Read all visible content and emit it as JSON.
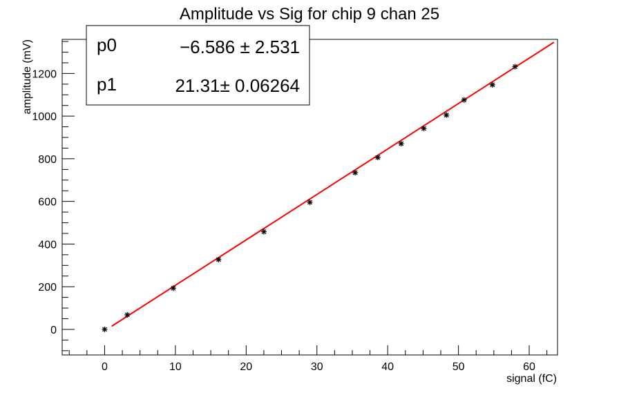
{
  "chart_data": {
    "type": "scatter",
    "title": "Amplitude vs Sig for chip 9 chan 25",
    "xlabel": "signal (fC)",
    "ylabel": "amplitude (mV)",
    "xlim": [
      -6,
      64
    ],
    "ylim": [
      -120,
      1360
    ],
    "xticks": [
      0,
      10,
      20,
      30,
      40,
      50,
      60
    ],
    "yticks": [
      0,
      200,
      400,
      600,
      800,
      1000,
      1200
    ],
    "x": [
      0,
      3.2,
      9.7,
      16.1,
      22.5,
      29.0,
      35.4,
      38.6,
      41.9,
      45.1,
      48.3,
      50.8,
      54.8,
      58.0
    ],
    "y": [
      0,
      68,
      193,
      327,
      458,
      596,
      735,
      806,
      871,
      942,
      1005,
      1076,
      1147,
      1232
    ],
    "fit": {
      "x_range": [
        1.0,
        63.5
      ],
      "p0": -6.586,
      "p1": 21.31,
      "color": "#ff0000"
    },
    "stats": {
      "p0_label": "p0",
      "p0_value": "−6.586 ± 2.531",
      "p1_label": "p1",
      "p1_value": "21.31± 0.06264"
    },
    "grid": false,
    "marker_color": "#000000"
  }
}
